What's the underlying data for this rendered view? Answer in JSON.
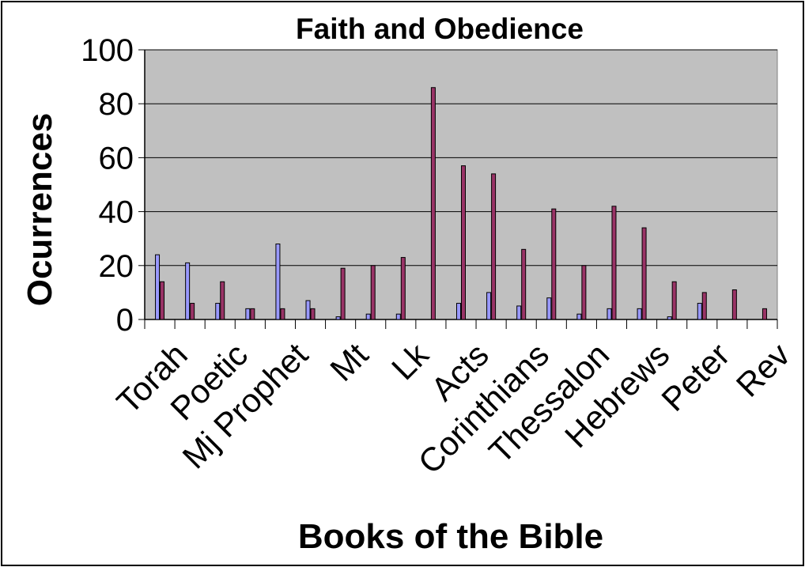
{
  "chart_data": {
    "type": "bar",
    "title": "Faith and Obedience",
    "xlabel": "Books of the Bible",
    "ylabel": "Ocurrences",
    "ylim": [
      0,
      100
    ],
    "yticks": [
      0,
      20,
      40,
      60,
      80,
      100
    ],
    "grid": true,
    "legend": "none",
    "categories": [
      "Torah",
      "",
      "Poetic",
      "",
      "Mj Prophet",
      "",
      "Mt",
      "",
      "Lk",
      "",
      "Acts",
      "",
      "Corinthians",
      "",
      "Thessalon",
      "",
      "Hebrews",
      "",
      "Peter",
      "",
      "Rev"
    ],
    "series": [
      {
        "color": "#9999ff",
        "values": [
          24,
          21,
          6,
          4,
          28,
          7,
          1,
          2,
          2,
          0,
          6,
          10,
          5,
          8,
          2,
          4,
          4,
          1,
          6,
          0,
          0
        ]
      },
      {
        "color": "#993366",
        "values": [
          14,
          6,
          14,
          4,
          4,
          4,
          19,
          20,
          23,
          86,
          57,
          54,
          26,
          41,
          20,
          42,
          34,
          14,
          10,
          11,
          4
        ]
      }
    ],
    "plot_background": "#c0c0c0"
  }
}
